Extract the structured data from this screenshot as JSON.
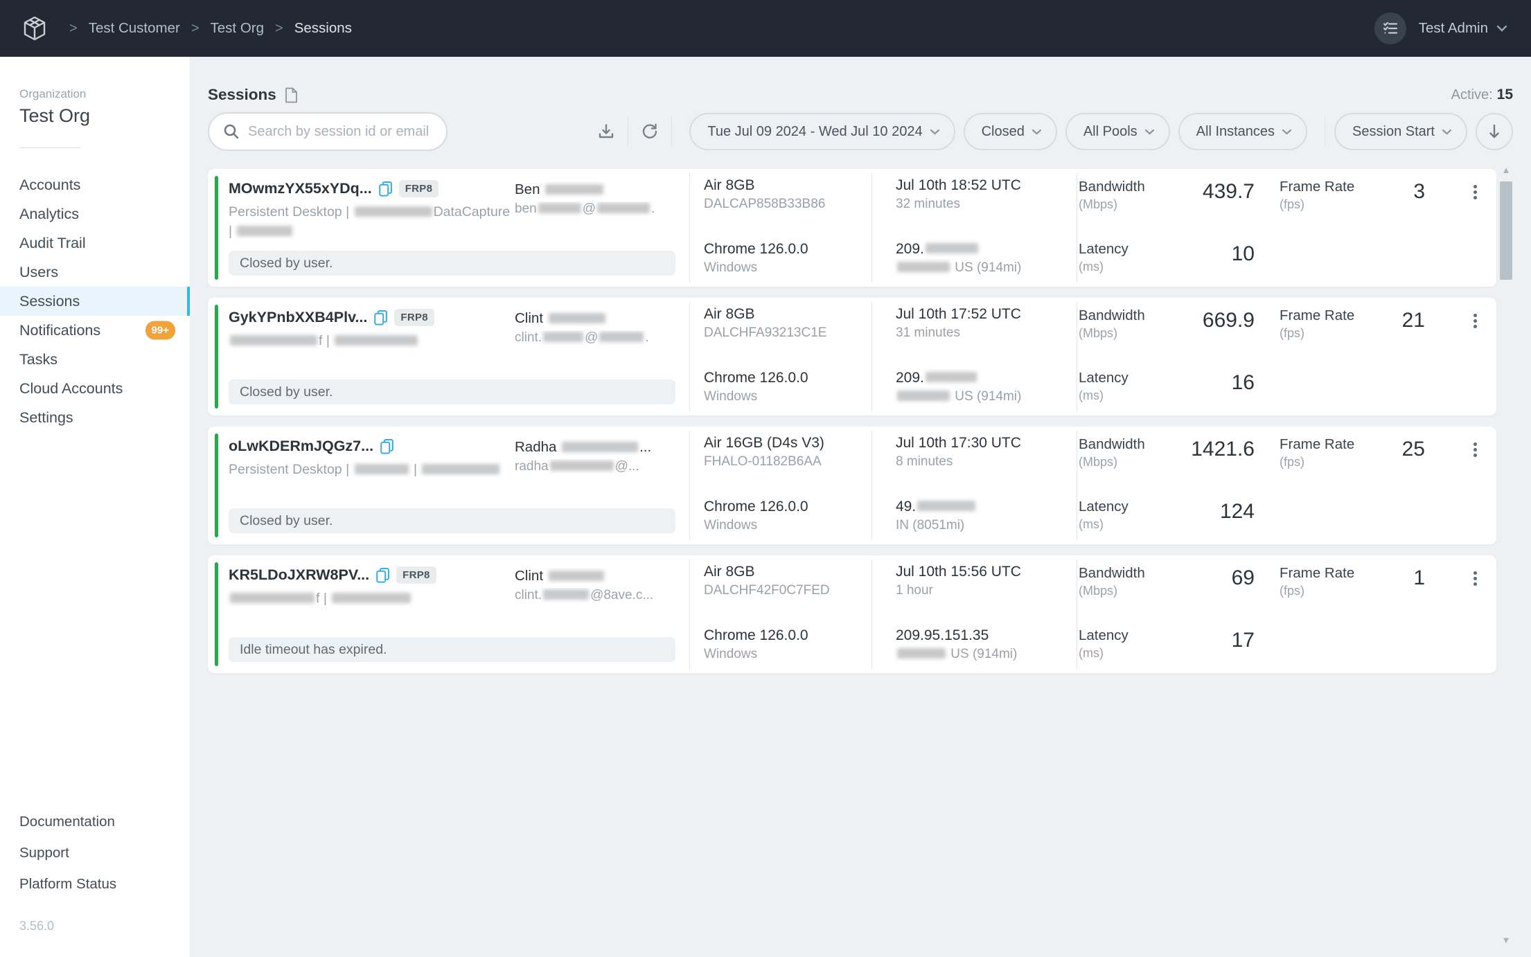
{
  "topbar": {
    "breadcrumb": [
      "Test Customer",
      "Test Org",
      "Sessions"
    ],
    "user_menu": "Test Admin"
  },
  "sidebar": {
    "org_label": "Organization",
    "org_name": "Test Org",
    "items": [
      {
        "label": "Accounts"
      },
      {
        "label": "Analytics"
      },
      {
        "label": "Audit Trail"
      },
      {
        "label": "Users"
      },
      {
        "label": "Sessions",
        "active": true
      },
      {
        "label": "Notifications",
        "badge": "99+"
      },
      {
        "label": "Tasks"
      },
      {
        "label": "Cloud Accounts"
      },
      {
        "label": "Settings"
      }
    ],
    "footer_links": [
      "Documentation",
      "Support",
      "Platform Status"
    ],
    "version": "3.56.0"
  },
  "header": {
    "title": "Sessions",
    "active_label": "Active:",
    "active_count": "15"
  },
  "toolbar": {
    "search_placeholder": "Search by session id or email",
    "date_range": "Tue Jul 09 2024 - Wed Jul 10 2024",
    "status_filter": "Closed",
    "pools_filter": "All Pools",
    "instances_filter": "All Instances",
    "sort_field": "Session Start"
  },
  "metric_labels": {
    "bandwidth": "Bandwidth",
    "bandwidth_unit": "(Mbps)",
    "latency": "Latency",
    "latency_unit": "(ms)",
    "framerate": "Frame Rate",
    "framerate_unit": "(fps)"
  },
  "icons": {
    "scroll_up": "▲",
    "scroll_down": "▼"
  },
  "colors": {
    "accent_blue": "#36b7ea",
    "session_active_green": "#27a84b",
    "badge_orange": "#f0a33a",
    "topbar_dark": "#232933"
  },
  "sessions": [
    {
      "id": "MOwmzYX55xYDq...",
      "badge": "FRP8",
      "desc": [
        {
          "t": "Persistent Desktop | "
        },
        {
          "r": 112
        },
        {
          "t": "DataCapture | "
        },
        {
          "r": 80
        }
      ],
      "user_name": [
        {
          "t": "Ben "
        },
        {
          "r": 84
        }
      ],
      "user_email": [
        {
          "t": "ben"
        },
        {
          "r": 62
        },
        {
          "t": "@"
        },
        {
          "r": 76
        },
        {
          "t": "."
        }
      ],
      "machine": "Air 8GB",
      "instance": "DALCAP858B33B86",
      "browser": "Chrome 126.0.0",
      "os": "Windows",
      "start": "Jul 10th 18:52 UTC",
      "duration": "32 minutes",
      "ip": [
        {
          "t": "209."
        },
        {
          "r": 76
        }
      ],
      "location": [
        {
          "r": 76
        },
        {
          "t": " US (914mi)"
        }
      ],
      "bandwidth": "439.7",
      "latency": "10",
      "framerate": "3",
      "status": "Closed by user."
    },
    {
      "id": "GykYPnbXXB4Plv...",
      "badge": "FRP8",
      "desc": [
        {
          "r": 126
        },
        {
          "t": "f | "
        },
        {
          "r": 120
        }
      ],
      "user_name": [
        {
          "t": "Clint "
        },
        {
          "r": 82
        }
      ],
      "user_email": [
        {
          "t": "clint."
        },
        {
          "r": 58
        },
        {
          "t": "@"
        },
        {
          "r": 64
        },
        {
          "t": "."
        }
      ],
      "machine": "Air 8GB",
      "instance": "DALCHFA93213C1E",
      "browser": "Chrome 126.0.0",
      "os": "Windows",
      "start": "Jul 10th 17:52 UTC",
      "duration": "31 minutes",
      "ip": [
        {
          "t": "209."
        },
        {
          "r": 74
        }
      ],
      "location": [
        {
          "r": 76
        },
        {
          "t": " US (914mi)"
        }
      ],
      "bandwidth": "669.9",
      "latency": "16",
      "framerate": "21",
      "status": "Closed by user."
    },
    {
      "id": "oLwKDERmJQGz7...",
      "badge": null,
      "desc": [
        {
          "t": "Persistent Desktop | "
        },
        {
          "r": 78
        },
        {
          "t": " | "
        },
        {
          "r": 112
        }
      ],
      "user_name": [
        {
          "t": "Radha "
        },
        {
          "r": 110
        },
        {
          "t": "..."
        }
      ],
      "user_email": [
        {
          "t": "radha"
        },
        {
          "r": 92
        },
        {
          "t": "@..."
        }
      ],
      "machine": "Air 16GB (D4s V3)",
      "instance": "FHALO-01182B6AA",
      "browser": "Chrome 126.0.0",
      "os": "Windows",
      "start": "Jul 10th 17:30 UTC",
      "duration": "8 minutes",
      "ip": [
        {
          "t": "49."
        },
        {
          "r": 84
        }
      ],
      "location": [
        {
          "t": "IN (8051mi)"
        }
      ],
      "bandwidth": "1421.6",
      "latency": "124",
      "framerate": "25",
      "status": "Closed by user."
    },
    {
      "id": "KR5LDoJXRW8PV...",
      "badge": "FRP8",
      "desc": [
        {
          "r": 122
        },
        {
          "t": "f | "
        },
        {
          "r": 114
        }
      ],
      "user_name": [
        {
          "t": "Clint "
        },
        {
          "r": 80
        }
      ],
      "user_email": [
        {
          "t": "clint."
        },
        {
          "r": 66
        },
        {
          "t": "@8ave.c..."
        }
      ],
      "machine": "Air 8GB",
      "instance": "DALCHF42F0C7FED",
      "browser": "Chrome 126.0.0",
      "os": "Windows",
      "start": "Jul 10th 15:56 UTC",
      "duration": "1 hour",
      "ip": [
        {
          "t": "209.95.151.35"
        }
      ],
      "location": [
        {
          "r": 70
        },
        {
          "t": " US (914mi)"
        }
      ],
      "bandwidth": "69",
      "latency": "17",
      "framerate": "1",
      "status": "Idle timeout has expired."
    }
  ]
}
